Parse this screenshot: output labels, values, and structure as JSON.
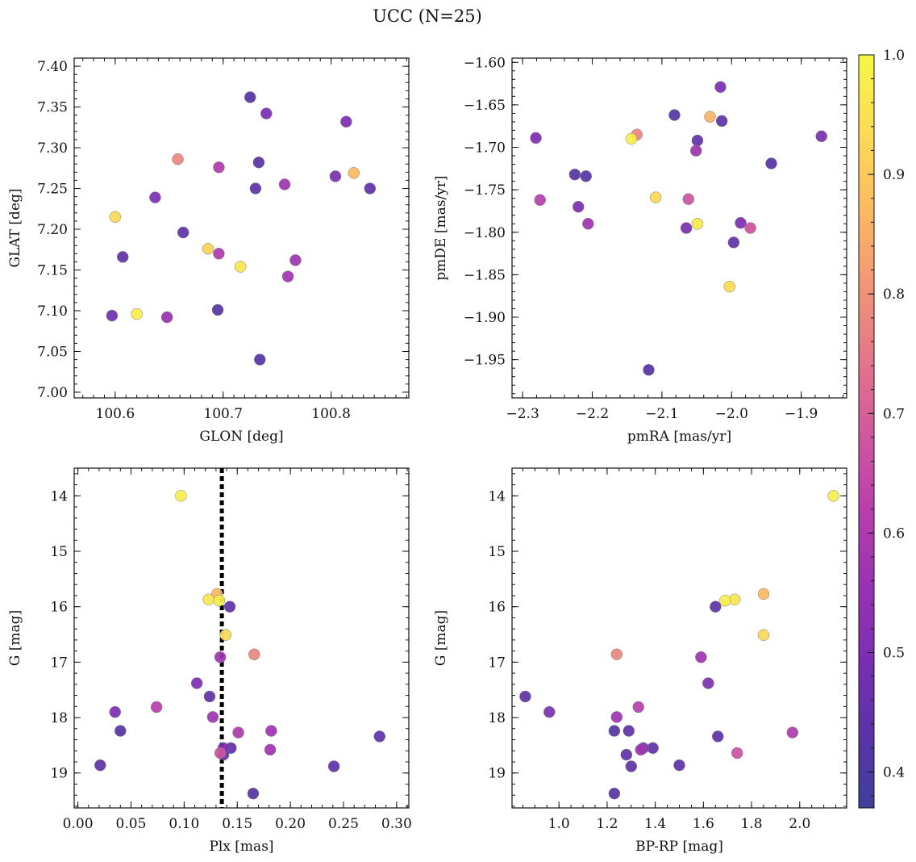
{
  "suptitle": "UCC (N=25)",
  "colormap": {
    "name": "plasma",
    "range": [
      0.37,
      1.0
    ],
    "ticks": [
      0.4,
      0.5,
      0.6,
      0.7,
      0.8,
      0.9,
      1.0
    ],
    "tick_labels": [
      "0.4",
      "0.5",
      "0.6",
      "0.7",
      "0.8",
      "0.9",
      "1.0"
    ],
    "stops": [
      "#3e3f99",
      "#5b33a6",
      "#7b2fb0",
      "#9a33b2",
      "#b840ac",
      "#cf5a9d",
      "#e2788a",
      "#f29875",
      "#fbbc62",
      "#fbdc56",
      "#f5f747"
    ]
  },
  "chart_data": [
    {
      "type": "scatter",
      "xlabel": "GLON [deg]",
      "ylabel": "GLAT [deg]",
      "xlim": [
        100.562,
        100.872
      ],
      "ylim": [
        6.993,
        7.41
      ],
      "xticks": [
        100.6,
        100.7,
        100.8
      ],
      "xtick_labels": [
        "100.6",
        "100.7",
        "100.8"
      ],
      "xminor": 0.01,
      "yticks": [
        7.0,
        7.05,
        7.1,
        7.15,
        7.2,
        7.25,
        7.3,
        7.35,
        7.4
      ],
      "ytick_labels": [
        "7.00",
        "7.05",
        "7.10",
        "7.15",
        "7.20",
        "7.25",
        "7.30",
        "7.35",
        "7.40"
      ],
      "yminor": 0.01,
      "yinvert": false,
      "points": [
        {
          "x": 100.725,
          "y": 7.362,
          "c": 0.42
        },
        {
          "x": 100.74,
          "y": 7.342,
          "c": 0.5
        },
        {
          "x": 100.814,
          "y": 7.332,
          "c": 0.5
        },
        {
          "x": 100.658,
          "y": 7.286,
          "c": 0.78
        },
        {
          "x": 100.696,
          "y": 7.276,
          "c": 0.6
        },
        {
          "x": 100.733,
          "y": 7.282,
          "c": 0.43
        },
        {
          "x": 100.821,
          "y": 7.269,
          "c": 0.87
        },
        {
          "x": 100.804,
          "y": 7.265,
          "c": 0.5
        },
        {
          "x": 100.757,
          "y": 7.255,
          "c": 0.57
        },
        {
          "x": 100.73,
          "y": 7.25,
          "c": 0.44
        },
        {
          "x": 100.836,
          "y": 7.25,
          "c": 0.44
        },
        {
          "x": 100.637,
          "y": 7.239,
          "c": 0.5
        },
        {
          "x": 100.6,
          "y": 7.215,
          "c": 0.93
        },
        {
          "x": 100.663,
          "y": 7.196,
          "c": 0.44
        },
        {
          "x": 100.686,
          "y": 7.176,
          "c": 0.92
        },
        {
          "x": 100.696,
          "y": 7.17,
          "c": 0.6
        },
        {
          "x": 100.767,
          "y": 7.162,
          "c": 0.57
        },
        {
          "x": 100.607,
          "y": 7.166,
          "c": 0.44
        },
        {
          "x": 100.716,
          "y": 7.154,
          "c": 0.96
        },
        {
          "x": 100.76,
          "y": 7.142,
          "c": 0.57
        },
        {
          "x": 100.695,
          "y": 7.101,
          "c": 0.42
        },
        {
          "x": 100.597,
          "y": 7.094,
          "c": 0.47
        },
        {
          "x": 100.62,
          "y": 7.096,
          "c": 0.98
        },
        {
          "x": 100.648,
          "y": 7.092,
          "c": 0.56
        },
        {
          "x": 100.734,
          "y": 7.04,
          "c": 0.42
        }
      ]
    },
    {
      "type": "scatter",
      "xlabel": "pmRA [mas/yr]",
      "ylabel": "pmDE [mas/yr]",
      "xlim": [
        -2.3152,
        -1.8348
      ],
      "ylim": [
        -1.995,
        -1.595
      ],
      "xticks": [
        -2.3,
        -2.2,
        -2.1,
        -2.0,
        -1.9
      ],
      "xtick_labels": [
        "−2.3",
        "−2.2",
        "−2.1",
        "−2.0",
        "−1.9"
      ],
      "xminor": 0.02,
      "yticks": [
        -1.95,
        -1.9,
        -1.85,
        -1.8,
        -1.75,
        -1.7,
        -1.65,
        -1.6
      ],
      "ytick_labels": [
        "−1.95",
        "−1.90",
        "−1.85",
        "−1.80",
        "−1.75",
        "−1.70",
        "−1.65",
        "−1.60"
      ],
      "yminor": 0.01,
      "yinvert": false,
      "points": [
        {
          "x": -2.016,
          "y": -1.629,
          "c": 0.5
        },
        {
          "x": -2.082,
          "y": -1.662,
          "c": 0.42
        },
        {
          "x": -2.031,
          "y": -1.664,
          "c": 0.86
        },
        {
          "x": -2.014,
          "y": -1.669,
          "c": 0.44
        },
        {
          "x": -2.136,
          "y": -1.685,
          "c": 0.78
        },
        {
          "x": -2.144,
          "y": -1.69,
          "c": 0.98
        },
        {
          "x": -2.281,
          "y": -1.689,
          "c": 0.5
        },
        {
          "x": -1.871,
          "y": -1.687,
          "c": 0.5
        },
        {
          "x": -2.049,
          "y": -1.692,
          "c": 0.44
        },
        {
          "x": -2.051,
          "y": -1.704,
          "c": 0.57
        },
        {
          "x": -1.943,
          "y": -1.719,
          "c": 0.42
        },
        {
          "x": -2.225,
          "y": -1.732,
          "c": 0.42
        },
        {
          "x": -2.209,
          "y": -1.734,
          "c": 0.42
        },
        {
          "x": -2.109,
          "y": -1.759,
          "c": 0.93
        },
        {
          "x": -2.062,
          "y": -1.761,
          "c": 0.67
        },
        {
          "x": -2.275,
          "y": -1.762,
          "c": 0.62
        },
        {
          "x": -2.22,
          "y": -1.77,
          "c": 0.5
        },
        {
          "x": -2.206,
          "y": -1.79,
          "c": 0.57
        },
        {
          "x": -2.049,
          "y": -1.79,
          "c": 0.97
        },
        {
          "x": -1.987,
          "y": -1.789,
          "c": 0.5
        },
        {
          "x": -2.065,
          "y": -1.795,
          "c": 0.5
        },
        {
          "x": -1.973,
          "y": -1.795,
          "c": 0.67
        },
        {
          "x": -1.997,
          "y": -1.812,
          "c": 0.44
        },
        {
          "x": -2.003,
          "y": -1.864,
          "c": 0.94
        },
        {
          "x": -2.119,
          "y": -1.962,
          "c": 0.42
        }
      ]
    },
    {
      "type": "scatter",
      "xlabel": "Plx [mas]",
      "ylabel": "G [mag]",
      "xlim": [
        -0.0035,
        0.3115
      ],
      "ylim": [
        13.5,
        19.63
      ],
      "xticks": [
        0.0,
        0.05,
        0.1,
        0.15,
        0.2,
        0.25,
        0.3
      ],
      "xtick_labels": [
        "0.00",
        "0.05",
        "0.10",
        "0.15",
        "0.20",
        "0.25",
        "0.30"
      ],
      "xminor": 0.01,
      "yticks": [
        14,
        15,
        16,
        17,
        18,
        19
      ],
      "ytick_labels": [
        "14",
        "15",
        "16",
        "17",
        "18",
        "19"
      ],
      "yminor": 0.2,
      "yinvert": true,
      "vline": {
        "x": 0.1355,
        "style": "dotted"
      },
      "points": [
        {
          "x": 0.097,
          "y": 14.0,
          "c": 0.98
        },
        {
          "x": 0.131,
          "y": 15.77,
          "c": 0.87
        },
        {
          "x": 0.123,
          "y": 15.87,
          "c": 0.96
        },
        {
          "x": 0.133,
          "y": 15.89,
          "c": 0.98
        },
        {
          "x": 0.143,
          "y": 16.0,
          "c": 0.44
        },
        {
          "x": 0.139,
          "y": 16.51,
          "c": 0.93
        },
        {
          "x": 0.166,
          "y": 16.86,
          "c": 0.78
        },
        {
          "x": 0.134,
          "y": 16.91,
          "c": 0.57
        },
        {
          "x": 0.112,
          "y": 17.38,
          "c": 0.5
        },
        {
          "x": 0.124,
          "y": 17.62,
          "c": 0.44
        },
        {
          "x": 0.074,
          "y": 17.81,
          "c": 0.62
        },
        {
          "x": 0.035,
          "y": 17.9,
          "c": 0.5
        },
        {
          "x": 0.127,
          "y": 17.99,
          "c": 0.57
        },
        {
          "x": 0.04,
          "y": 18.24,
          "c": 0.42
        },
        {
          "x": 0.182,
          "y": 18.24,
          "c": 0.57
        },
        {
          "x": 0.151,
          "y": 18.27,
          "c": 0.6
        },
        {
          "x": 0.284,
          "y": 18.34,
          "c": 0.44
        },
        {
          "x": 0.137,
          "y": 18.55,
          "c": 0.5
        },
        {
          "x": 0.144,
          "y": 18.55,
          "c": 0.44
        },
        {
          "x": 0.181,
          "y": 18.58,
          "c": 0.57
        },
        {
          "x": 0.134,
          "y": 18.64,
          "c": 0.67
        },
        {
          "x": 0.137,
          "y": 18.67,
          "c": 0.44
        },
        {
          "x": 0.021,
          "y": 18.86,
          "c": 0.44
        },
        {
          "x": 0.241,
          "y": 18.88,
          "c": 0.44
        },
        {
          "x": 0.165,
          "y": 19.37,
          "c": 0.42
        }
      ]
    },
    {
      "type": "scatter",
      "xlabel": "BP-RP [mag]",
      "ylabel": "G [mag]",
      "xlim": [
        0.805,
        2.195
      ],
      "ylim": [
        13.5,
        19.63
      ],
      "xticks": [
        1.0,
        1.2,
        1.4,
        1.6,
        1.8,
        2.0
      ],
      "xtick_labels": [
        "1.0",
        "1.2",
        "1.4",
        "1.6",
        "1.8",
        "2.0"
      ],
      "xminor": 0.05,
      "yticks": [
        14,
        15,
        16,
        17,
        18,
        19
      ],
      "ytick_labels": [
        "14",
        "15",
        "16",
        "17",
        "18",
        "19"
      ],
      "yminor": 0.2,
      "yinvert": true,
      "points": [
        {
          "x": 2.14,
          "y": 14.0,
          "c": 0.98
        },
        {
          "x": 1.85,
          "y": 15.77,
          "c": 0.87
        },
        {
          "x": 1.73,
          "y": 15.87,
          "c": 0.96
        },
        {
          "x": 1.69,
          "y": 15.89,
          "c": 0.98
        },
        {
          "x": 1.65,
          "y": 16.0,
          "c": 0.44
        },
        {
          "x": 1.85,
          "y": 16.51,
          "c": 0.93
        },
        {
          "x": 1.24,
          "y": 16.86,
          "c": 0.78
        },
        {
          "x": 1.59,
          "y": 16.91,
          "c": 0.57
        },
        {
          "x": 1.62,
          "y": 17.38,
          "c": 0.5
        },
        {
          "x": 0.86,
          "y": 17.62,
          "c": 0.44
        },
        {
          "x": 1.33,
          "y": 17.81,
          "c": 0.62
        },
        {
          "x": 0.96,
          "y": 17.9,
          "c": 0.5
        },
        {
          "x": 1.24,
          "y": 17.99,
          "c": 0.57
        },
        {
          "x": 1.23,
          "y": 18.24,
          "c": 0.42
        },
        {
          "x": 1.29,
          "y": 18.24,
          "c": 0.44
        },
        {
          "x": 1.97,
          "y": 18.27,
          "c": 0.6
        },
        {
          "x": 1.66,
          "y": 18.34,
          "c": 0.44
        },
        {
          "x": 1.35,
          "y": 18.55,
          "c": 0.5
        },
        {
          "x": 1.39,
          "y": 18.55,
          "c": 0.44
        },
        {
          "x": 1.34,
          "y": 18.58,
          "c": 0.57
        },
        {
          "x": 1.74,
          "y": 18.64,
          "c": 0.67
        },
        {
          "x": 1.28,
          "y": 18.67,
          "c": 0.44
        },
        {
          "x": 1.5,
          "y": 18.86,
          "c": 0.44
        },
        {
          "x": 1.3,
          "y": 18.88,
          "c": 0.44
        },
        {
          "x": 1.23,
          "y": 19.37,
          "c": 0.42
        }
      ]
    }
  ]
}
